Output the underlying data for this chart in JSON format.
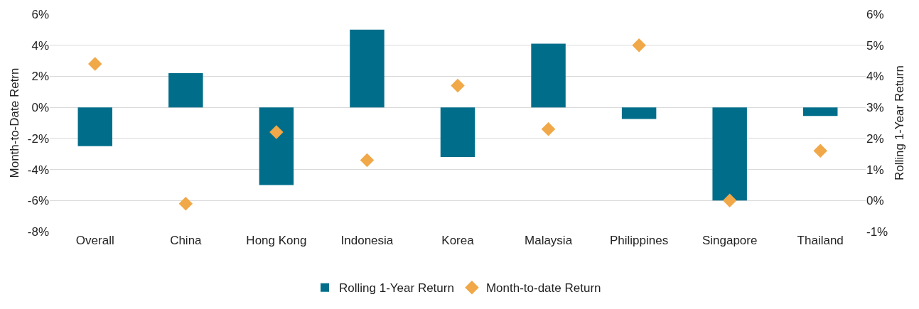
{
  "chart_data": {
    "type": "bar",
    "ylabel": "Month-to-Date Retrn",
    "y2label": "Rolling 1-Year Return",
    "categories": [
      "Overall",
      "China",
      "Hong Kong",
      "Indonesia",
      "Korea",
      "Malaysia",
      "Philippines",
      "Singapore",
      "Thailand"
    ],
    "series": [
      {
        "name": "Rolling 1-Year Return",
        "color": "#006e8a",
        "values": [
          -2.5,
          2.2,
          -5.0,
          5.0,
          -3.2,
          4.1,
          -0.75,
          -6.0,
          -0.55
        ]
      },
      {
        "name": "Month-to-date Return",
        "type": "scatter",
        "axis": "y2",
        "marker": "diamond",
        "color": "#f0a848",
        "values": [
          4.4,
          -0.1,
          2.2,
          1.3,
          3.7,
          2.3,
          5.0,
          0.0,
          1.6
        ]
      }
    ],
    "ylim": [
      -8,
      6
    ],
    "yticks": [
      {
        "value": -8,
        "label": "-8%"
      },
      {
        "value": -6,
        "label": "-6%"
      },
      {
        "value": -4,
        "label": "-4%"
      },
      {
        "value": -2,
        "label": "-2%"
      },
      {
        "value": 0,
        "label": "0%"
      },
      {
        "value": 2,
        "label": "2%"
      },
      {
        "value": 4,
        "label": "4%"
      },
      {
        "value": 6,
        "label": "6%"
      }
    ],
    "y2lim": [
      -1,
      6
    ],
    "y2ticks": [
      {
        "value": -1,
        "label": "-1%"
      },
      {
        "value": 0,
        "label": "0%"
      },
      {
        "value": 1,
        "label": "1%"
      },
      {
        "value": 2,
        "label": "2%"
      },
      {
        "value": 3,
        "label": "3%"
      },
      {
        "value": 4,
        "label": "4%"
      },
      {
        "value": 5,
        "label": "5%"
      },
      {
        "value": 6,
        "label": "6%"
      }
    ],
    "grid": "y",
    "legend": "bottom"
  }
}
